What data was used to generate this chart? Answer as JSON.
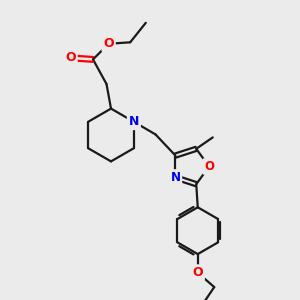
{
  "background_color": "#ebebeb",
  "bond_color": "#1a1a1a",
  "atom_colors": {
    "O": "#ff0000",
    "N": "#0000ee",
    "C": "#1a1a1a"
  },
  "line_width": 1.6,
  "figsize": [
    3.0,
    3.0
  ],
  "dpi": 100
}
